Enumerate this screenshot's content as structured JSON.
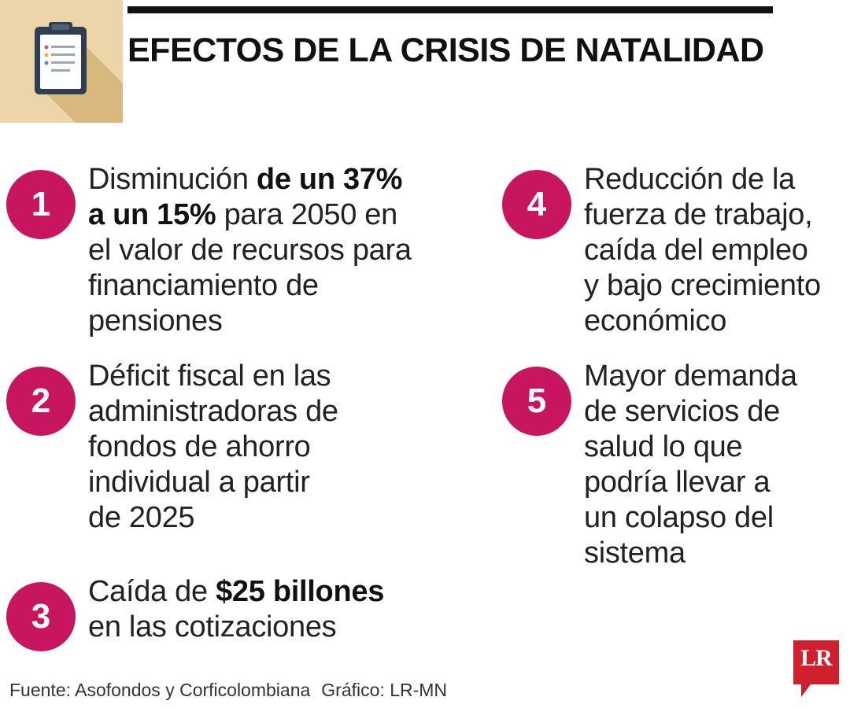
{
  "header": {
    "title": "EFECTOS DE LA CRISIS DE NATALIDAD",
    "icon": "clipboard-icon"
  },
  "items": [
    {
      "number": "1",
      "lines": [
        [
          {
            "t": "Disminución "
          },
          {
            "t": "de un 37%",
            "b": true
          }
        ],
        [
          {
            "t": "a un 15%",
            "b": true
          },
          {
            "t": " para 2050 en"
          }
        ],
        [
          {
            "t": "el valor de recursos para"
          }
        ],
        [
          {
            "t": "financiamiento de"
          }
        ],
        [
          {
            "t": "pensiones"
          }
        ]
      ]
    },
    {
      "number": "2",
      "lines": [
        [
          {
            "t": "Déficit fiscal en las"
          }
        ],
        [
          {
            "t": "administradoras de"
          }
        ],
        [
          {
            "t": "fondos de ahorro"
          }
        ],
        [
          {
            "t": "individual a partir"
          }
        ],
        [
          {
            "t": "de 2025"
          }
        ]
      ]
    },
    {
      "number": "3",
      "lines": [
        [
          {
            "t": "Caída de "
          },
          {
            "t": "$25 billones",
            "b": true
          }
        ],
        [
          {
            "t": "en las cotizaciones"
          }
        ]
      ]
    },
    {
      "number": "4",
      "lines": [
        [
          {
            "t": "Reducción de la"
          }
        ],
        [
          {
            "t": "fuerza de trabajo,"
          }
        ],
        [
          {
            "t": "caída del empleo"
          }
        ],
        [
          {
            "t": "y bajo crecimiento"
          }
        ],
        [
          {
            "t": "económico"
          }
        ]
      ]
    },
    {
      "number": "5",
      "lines": [
        [
          {
            "t": "Mayor demanda"
          }
        ],
        [
          {
            "t": "de servicios de"
          }
        ],
        [
          {
            "t": "salud lo que"
          }
        ],
        [
          {
            "t": "podría llevar a"
          }
        ],
        [
          {
            "t": "un colapso del"
          }
        ],
        [
          {
            "t": "sistema"
          }
        ]
      ]
    }
  ],
  "footer": {
    "source": "Fuente: Asofondos y Corficolombiana",
    "credit": "Gráfico: LR-MN"
  },
  "logo": {
    "text": "LR",
    "color": "#d0202e"
  },
  "colors": {
    "accent": "#c8155f",
    "tile": "#ecd5a8",
    "tile_shadow": "#d8b87c",
    "clipboard": "#2f3e52"
  }
}
